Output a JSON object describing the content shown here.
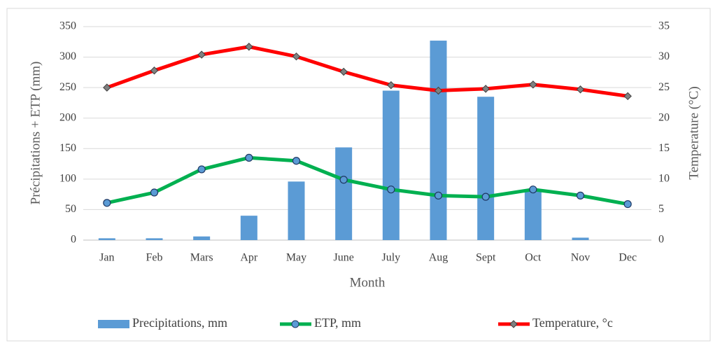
{
  "chart_data": {
    "type": "bar",
    "x_label": "Month",
    "y_label": "Précipitations  + ETP (mm)",
    "y2_label": "Temperature  (°C)",
    "categories": [
      "Jan",
      "Feb",
      "Mars",
      "Apr",
      "May",
      "June",
      "July",
      "Aug",
      "Sept",
      "Oct",
      "Nov",
      "Dec"
    ],
    "series": [
      {
        "name": "Precipitations, mm",
        "type": "bar",
        "color": "#5b9bd5",
        "values": [
          3,
          3,
          6,
          40,
          96,
          152,
          245,
          327,
          235,
          82,
          4,
          0
        ]
      },
      {
        "name": "ETP, mm",
        "type": "line",
        "color": "#00b050",
        "marker_color": "#5b9bd5",
        "values": [
          61,
          78,
          116,
          135,
          130,
          99,
          83,
          73,
          71,
          83,
          73,
          59
        ]
      },
      {
        "name": "Temperature, °c",
        "type": "line",
        "axis": "y2",
        "color": "#ff0000",
        "marker_color": "#808080",
        "values": [
          25,
          27.8,
          30.4,
          31.7,
          30.1,
          27.6,
          25.4,
          24.5,
          24.8,
          25.5,
          24.7,
          23.6
        ]
      }
    ],
    "ylim": [
      0,
      350
    ],
    "yticks": [
      0,
      50,
      100,
      150,
      200,
      250,
      300,
      350
    ],
    "y2lim": [
      0,
      35
    ],
    "y2ticks": [
      0,
      5,
      10,
      15,
      20,
      25,
      30,
      35
    ],
    "grid": true,
    "legend": "bottom"
  }
}
